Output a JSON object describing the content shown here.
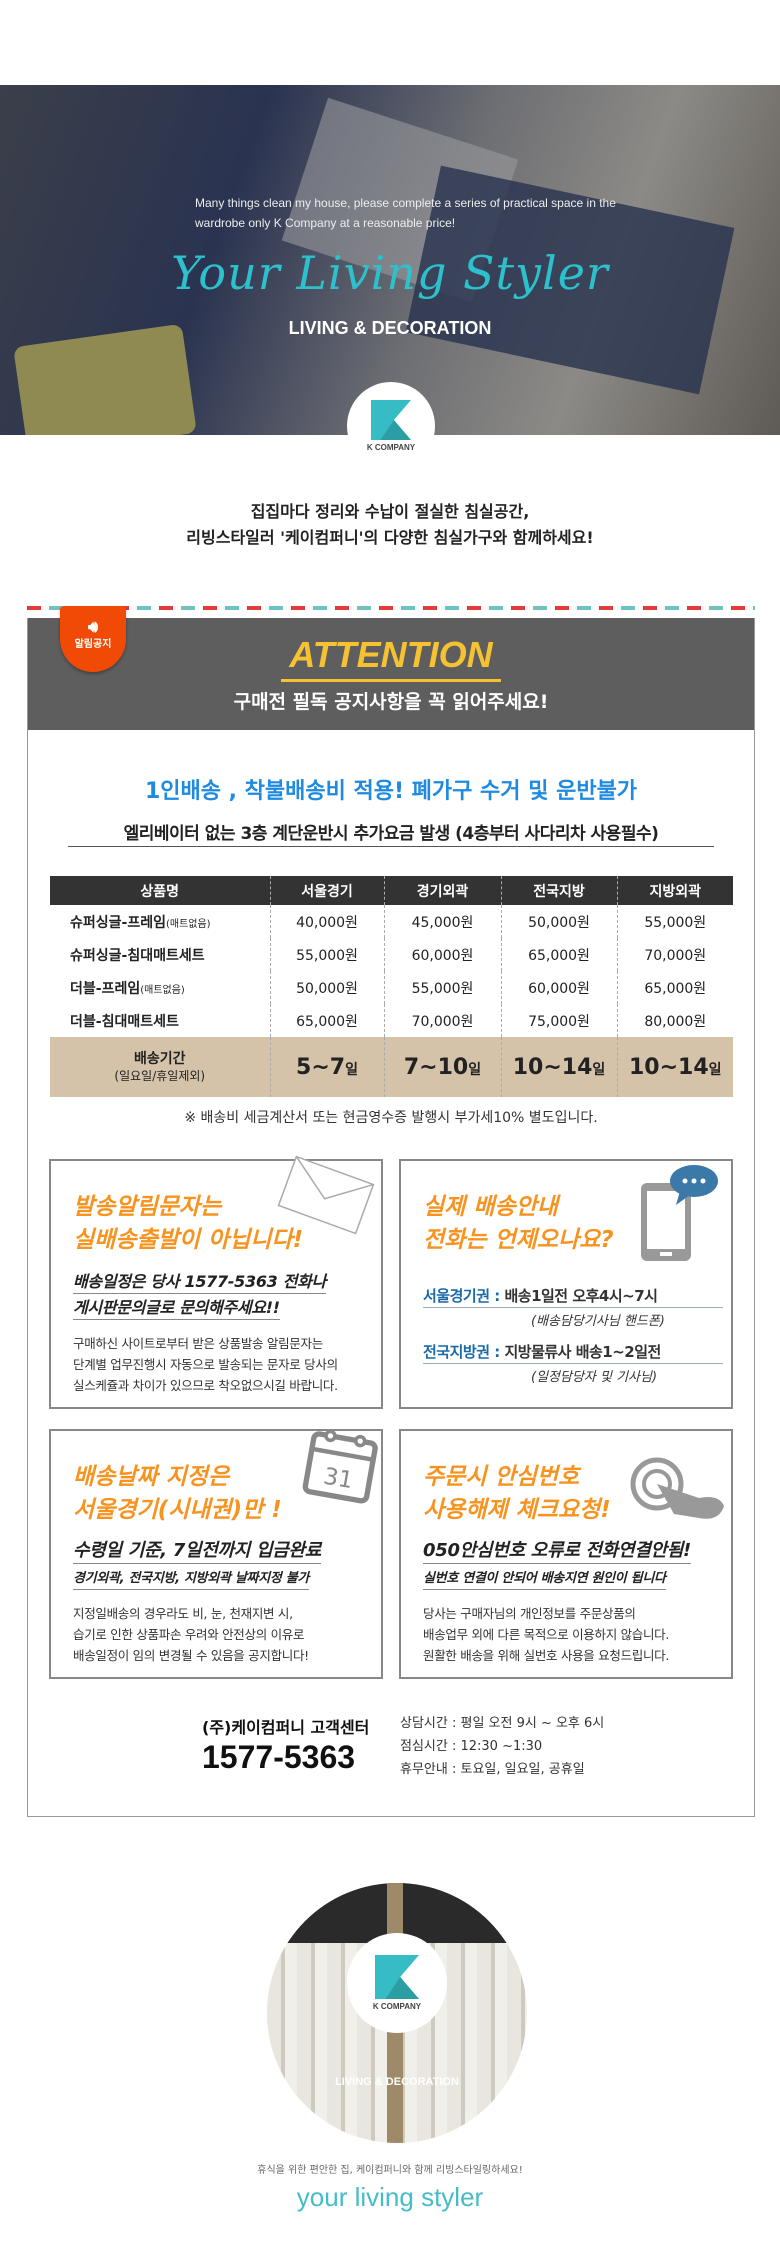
{
  "hero": {
    "description": "Many things clean my house, please complete a series of practical space in the wardrobe only K Company at a reasonable price!",
    "script_title": "Your Living Styler",
    "subtitle": "LIVING & DECORATION",
    "logo_text": "K COMPANY"
  },
  "intro": {
    "line1": "집집마다 정리와 수납이 절실한 침실공간,",
    "line2": "리빙스타일러 '케이컴퍼니'의 다양한 침실가구와 함께하세요!"
  },
  "notice": {
    "badge": "알림공지",
    "title": "ATTENTION",
    "subtitle": "구매전 필독 공지사항을 꼭 읽어주세요!",
    "headline": "1인배송 , 착불배송비 적용! 폐가구 수거 및 운반불가",
    "subheadline": "엘리베이터 없는 3층 계단운반시 추가요금 발생 (4층부터 사다리차 사용필수)",
    "colors": {
      "header_bg": "#5e5e5e",
      "accent_yellow": "#f6c232",
      "badge": "#f04a06",
      "headline_blue": "#1e8ae0",
      "card_orange": "#f7931e",
      "delivery_row": "#d4c3a9"
    }
  },
  "table": {
    "headers": [
      "상품명",
      "서울경기",
      "경기외곽",
      "전국지방",
      "지방외곽"
    ],
    "rows": [
      {
        "name": "슈퍼싱글-프레임",
        "note": "(매트없음)",
        "prices": [
          "40,000원",
          "45,000원",
          "50,000원",
          "55,000원"
        ]
      },
      {
        "name": "슈퍼싱글-침대매트세트",
        "note": "",
        "prices": [
          "55,000원",
          "60,000원",
          "65,000원",
          "70,000원"
        ]
      },
      {
        "name": "더블-프레임",
        "note": "(매트없음)",
        "prices": [
          "50,000원",
          "55,000원",
          "60,000원",
          "65,000원"
        ]
      },
      {
        "name": "더블-침대매트세트",
        "note": "",
        "prices": [
          "65,000원",
          "70,000원",
          "75,000원",
          "80,000원"
        ]
      }
    ],
    "delivery": {
      "label": "배송기간",
      "label_note": "(일요일/휴일제외)",
      "unit": "일",
      "periods": [
        "5~7",
        "7~10",
        "10~14",
        "10~14"
      ]
    },
    "note": "※ 배송비 세금계산서 또는 현금영수증 발행시 부가세10% 별도입니다."
  },
  "cards": [
    {
      "title1": "발송알림문자는",
      "title2": "실배송출발이 아닙니다!",
      "sub1": "배송일정은 당사 1577-5363 전화나",
      "sub2": "게시판문의글로 문의해주세요!!",
      "body": [
        "구매하신 사이트로부터 받은 상품발송 알림문자는",
        "단계별 업무진행시 자동으로 발송되는 문자로 당사의",
        "실스케쥴과 차이가 있으므로 착오없으시길 바랍니다."
      ],
      "icon": "envelope-icon"
    },
    {
      "title1": "실제 배송안내",
      "title2": "전화는 언제오나요?",
      "regions": [
        {
          "label": "서울경기권",
          "sep": " : ",
          "text": "배송1일전 오후4시~7시",
          "note": "(배송담당기사님 핸드폰)"
        },
        {
          "label": "전국지방권",
          "sep": " : ",
          "text": "지방물류사 배송1~2일전",
          "note": "(일정담당자 및 기사님)"
        }
      ],
      "icon": "phone-chat-icon"
    },
    {
      "title1": "배송날짜 지정은",
      "title2": "서울경기(시내권)만 !",
      "sub1": "수령일 기준, 7일전까지 입금완료",
      "sub2": "경기외곽, 전국지방, 지방외곽 날짜지정 불가",
      "body": [
        "지정일배송의 경우라도 비, 눈, 천재지변 시,",
        "습기로 인한 상품파손 우려와 안전상의 이유로",
        "배송일정이 임의 변경될 수 있음을 공지합니다!"
      ],
      "icon": "calendar-icon",
      "calendar_day": "31"
    },
    {
      "title1": "주문시 안심번호",
      "title2": "사용해제 체크요청!",
      "sub1": "050안심번호 오류로 전화연결안됨!",
      "sub2": "실번호 연결이 안되어 배송지연 원인이 됩니다",
      "body": [
        "당사는 구매자님의 개인정보를 주문상품의",
        "배송업무 외에 다른 목적으로 이용하지 않습니다.",
        "원활한 배송을 위해 실번호 사용을 요청드립니다."
      ],
      "icon": "hand-tap-icon"
    }
  ],
  "customer_center": {
    "title": "(주)케이컴퍼니 고객센터",
    "phone": "1577-5363",
    "info": [
      "상담시간 : 평일 오전 9시 ~ 오후 6시",
      "점심시간 : 12:30 ~1:30",
      "휴무안내 : 토요일, 일요일, 공휴일"
    ]
  },
  "footer": {
    "logo_text": "K COMPANY",
    "subtitle": "LIVING & DECORATION",
    "tagline": "휴식을 위한 편안한 집, 케이컴퍼니와 함께 리빙스타일링하세요!",
    "script": "your living styler"
  }
}
